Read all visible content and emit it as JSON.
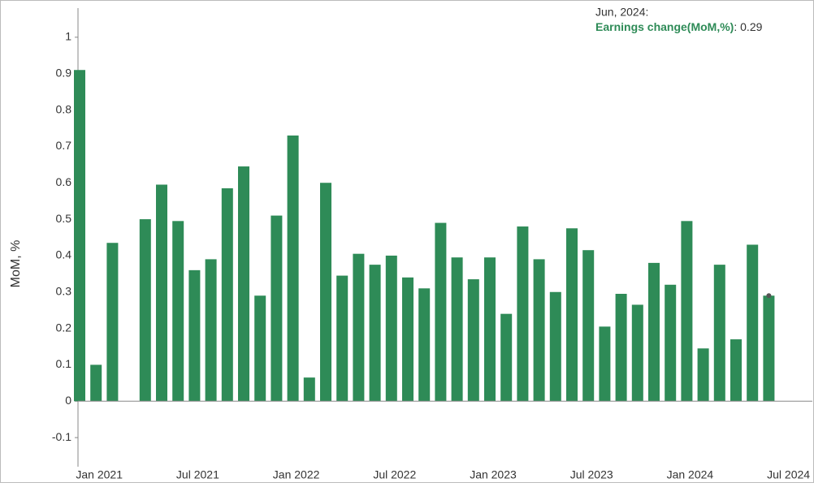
{
  "chart_data": {
    "type": "bar",
    "y_label": "MoM, %",
    "categories": [
      null,
      "Jan 2021",
      null,
      null,
      null,
      null,
      null,
      "Jul 2021",
      null,
      null,
      null,
      null,
      null,
      "Jan 2022",
      null,
      null,
      null,
      null,
      null,
      "Jul 2022",
      null,
      null,
      null,
      null,
      null,
      "Jan 2023",
      null,
      null,
      null,
      null,
      null,
      "Jul 2023",
      null,
      null,
      null,
      null,
      null,
      "Jan 2024",
      null,
      null,
      null,
      null,
      null,
      "Jul 2024"
    ],
    "series": [
      {
        "name": "Earnings change(MoM,%)",
        "color": "#2e8b57",
        "values": [
          0.91,
          0.1,
          0.435,
          0.0,
          0.5,
          0.595,
          0.495,
          0.36,
          0.39,
          0.585,
          0.645,
          0.29,
          0.51,
          0.73,
          0.065,
          0.6,
          0.345,
          0.405,
          0.375,
          0.4,
          0.34,
          0.31,
          0.49,
          0.395,
          0.335,
          0.395,
          0.24,
          0.48,
          0.39,
          0.3,
          0.475,
          0.415,
          0.205,
          0.295,
          0.265,
          0.38,
          0.32,
          0.495,
          0.145,
          0.375,
          0.17,
          0.43,
          0.29,
          null
        ]
      }
    ],
    "ylim": [
      -0.18,
      1.08
    ],
    "yticks": [
      -0.1,
      0,
      0.1,
      0.2,
      0.3,
      0.4,
      0.5,
      0.6,
      0.7,
      0.8,
      0.9,
      1
    ],
    "tooltip": {
      "title": "Jun, 2024:",
      "text": ": 0.29"
    }
  }
}
